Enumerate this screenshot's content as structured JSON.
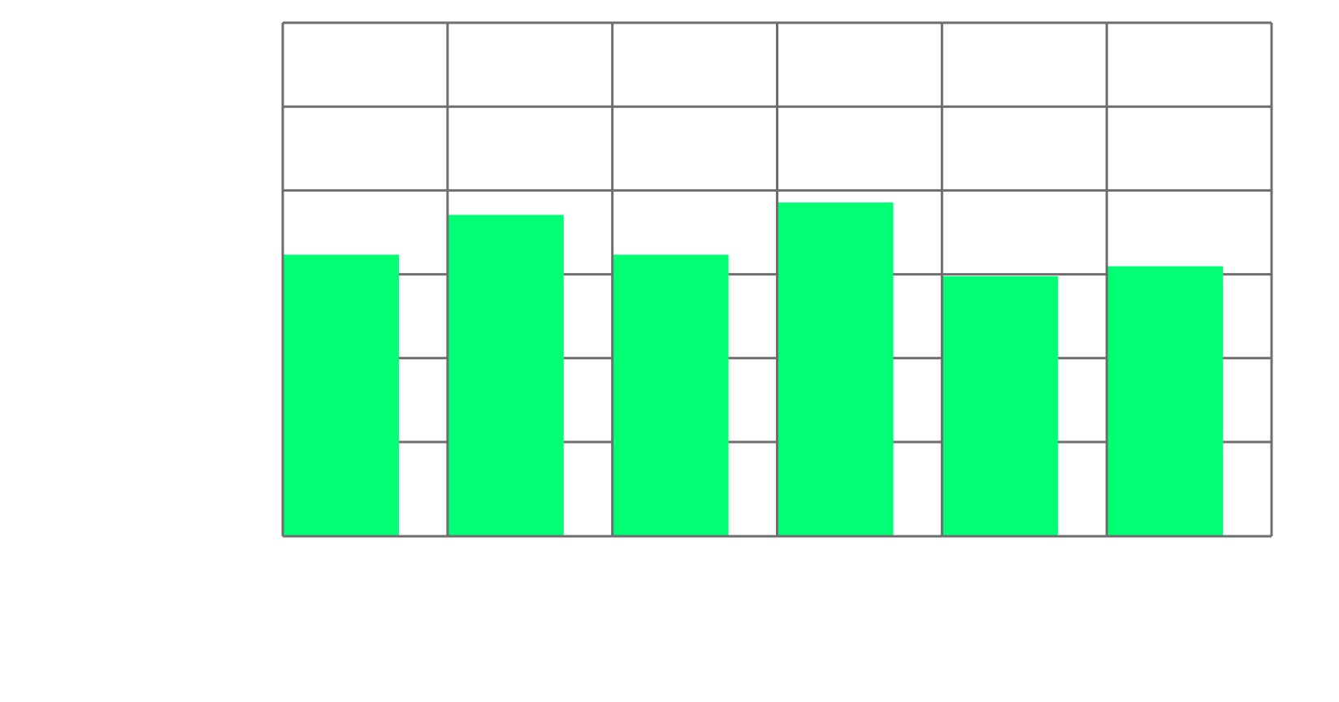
{
  "chart_data": {
    "type": "bar",
    "categories": [
      "",
      "",
      "",
      "",
      "",
      ""
    ],
    "values": [
      3.4,
      3.88,
      3.4,
      4.03,
      3.14,
      3.26
    ],
    "ylim": [
      0,
      6.2
    ],
    "grid": true,
    "colors": {
      "bar": "#00ff73",
      "grid": "#6e6e6e",
      "background": "#ffffff"
    }
  }
}
